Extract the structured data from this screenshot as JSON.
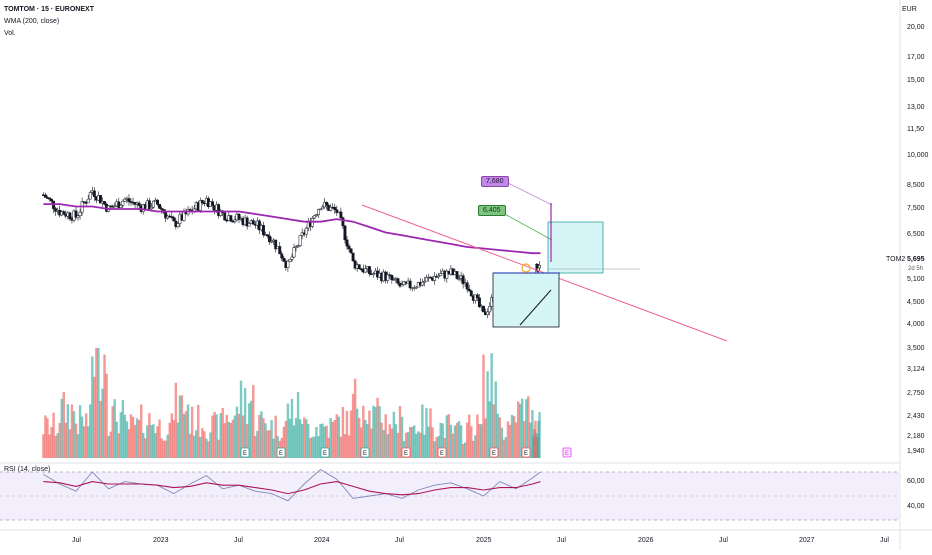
{
  "header": {
    "symbol_line": "TOMTOM · 15 · EURONEXT",
    "indicator_1": "WMA (200, close)",
    "indicator_2": "Vol.",
    "currency": "EUR"
  },
  "rsi_panel": {
    "label": "RSI (14, close)",
    "levels": [
      "60,00",
      "40,00"
    ]
  },
  "ticker": {
    "symbol": "TOM2",
    "price": "5,695",
    "countdown": "2d 5h"
  },
  "annotations": {
    "target_high": "7,680",
    "target_mid": "6,405",
    "target_high_color": "#c08be8",
    "target_mid_color": "#4caf50"
  },
  "colors": {
    "up": "#26a69a",
    "down": "#ef5350",
    "wma": "#9c27b0",
    "trendline": "#f06292",
    "box_fill": "#b2ebf2",
    "rsi_line": "#7e88b8",
    "rsi_signal": "#ad1457"
  },
  "chart_data": [
    {
      "type": "candlestick",
      "title": "TOMTOM · 15 · EURONEXT",
      "y_axis_scale": "log",
      "y_ticks": [
        "20,00",
        "17,00",
        "15,00",
        "13,00",
        "11,50",
        "10,000",
        "8,500",
        "7,500",
        "6,500",
        "5,695",
        "5,100",
        "4,500",
        "4,000",
        "3,500",
        "3,124",
        "2,750",
        "2,430",
        "2,180",
        "1,940"
      ],
      "x_ticks": [
        "Jul",
        "2023",
        "Jul",
        "2024",
        "Jul",
        "2025",
        "Jul",
        "2026",
        "Jul",
        "2027",
        "Jul"
      ],
      "ylim": [
        3.4,
        21
      ],
      "x": [
        2022.3,
        2022.4,
        2022.5,
        2022.6,
        2022.7,
        2022.8,
        2022.9,
        2023.0,
        2023.1,
        2023.2,
        2023.3,
        2023.4,
        2023.5,
        2023.6,
        2023.7,
        2023.8,
        2023.9,
        2024.0,
        2024.1,
        2024.2,
        2024.3,
        2024.4,
        2024.5,
        2024.6,
        2024.7,
        2024.8,
        2024.9,
        2025.0,
        2025.1,
        2025.2,
        2025.3,
        2025.35
      ],
      "close_approx": [
        8.1,
        7.4,
        7.2,
        8.3,
        7.5,
        7.9,
        7.6,
        7.7,
        6.9,
        7.4,
        7.9,
        7.3,
        7.1,
        6.9,
        6.4,
        5.5,
        6.6,
        7.7,
        7.4,
        5.6,
        5.3,
        5.2,
        4.9,
        5.0,
        5.2,
        5.3,
        5.0,
        4.2,
        4.9,
        4.4,
        5.1,
        5.7
      ],
      "wma_200": [
        7.7,
        7.7,
        7.6,
        7.6,
        7.5,
        7.5,
        7.5,
        7.4,
        7.4,
        7.4,
        7.4,
        7.4,
        7.4,
        7.3,
        7.2,
        7.1,
        7.0,
        7.0,
        7.1,
        7.0,
        6.8,
        6.6,
        6.5,
        6.4,
        6.3,
        6.2,
        6.1,
        6.05,
        6.0,
        5.95,
        5.9,
        5.9
      ]
    },
    {
      "type": "bar",
      "title": "Vol.",
      "x": [
        2022.3,
        2022.4,
        2022.5,
        2022.6,
        2022.7,
        2022.8,
        2022.9,
        2023.0,
        2023.1,
        2023.2,
        2023.3,
        2023.4,
        2023.5,
        2023.6,
        2023.7,
        2023.8,
        2023.9,
        2024.0,
        2024.1,
        2024.2,
        2024.3,
        2024.4,
        2024.5,
        2024.6,
        2024.7,
        2024.8,
        2024.9,
        2025.0,
        2025.1,
        2025.2,
        2025.3,
        2025.35
      ],
      "relative_volume": [
        0.3,
        0.45,
        0.35,
        1.0,
        0.4,
        0.3,
        0.35,
        0.3,
        0.5,
        0.35,
        0.3,
        0.4,
        0.55,
        0.35,
        0.3,
        0.45,
        0.3,
        0.3,
        0.35,
        0.55,
        0.4,
        0.35,
        0.3,
        0.35,
        0.3,
        0.25,
        0.3,
        0.7,
        0.3,
        0.45,
        0.35,
        0.3
      ]
    },
    {
      "type": "line",
      "title": "RSI (14, close)",
      "ylim": [
        30,
        70
      ],
      "y_ticks": [
        "60,00",
        "40,00"
      ],
      "x": [
        2022.3,
        2022.4,
        2022.5,
        2022.6,
        2022.7,
        2022.8,
        2022.9,
        2023.0,
        2023.1,
        2023.2,
        2023.3,
        2023.4,
        2023.5,
        2023.6,
        2023.7,
        2023.8,
        2023.9,
        2024.0,
        2024.1,
        2024.2,
        2024.3,
        2024.4,
        2024.5,
        2024.6,
        2024.7,
        2024.8,
        2024.9,
        2025.0,
        2025.1,
        2025.2,
        2025.3,
        2025.35
      ],
      "values": [
        58,
        50,
        44,
        60,
        46,
        52,
        50,
        49,
        42,
        50,
        57,
        46,
        49,
        44,
        42,
        36,
        50,
        62,
        54,
        38,
        40,
        42,
        38,
        45,
        49,
        51,
        46,
        40,
        52,
        46,
        55,
        60
      ],
      "signal": [
        52,
        51,
        48,
        52,
        50,
        50,
        50,
        49,
        47,
        48,
        51,
        49,
        49,
        47,
        45,
        42,
        45,
        50,
        52,
        48,
        44,
        42,
        41,
        42,
        45,
        47,
        47,
        45,
        47,
        47,
        50,
        52
      ]
    }
  ]
}
